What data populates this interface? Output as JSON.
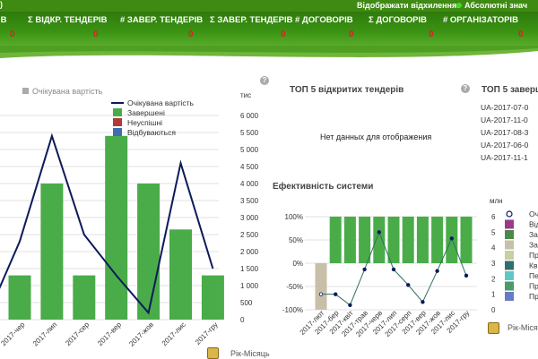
{
  "header": {
    "left_paren": ")",
    "display_label": "Відображати відхилення:",
    "display_option": "Абсолютні знач",
    "kpis": [
      {
        "label": "ІВ",
        "value": "0"
      },
      {
        "label": "Σ ВІДКР. ТЕНДЕРІВ",
        "value": "0"
      },
      {
        "label": "# ЗАВЕР. ТЕНДЕРІВ",
        "value": "0"
      },
      {
        "label": "Σ ЗАВЕР. ТЕНДЕРІВ",
        "value": "0"
      },
      {
        "label": "# ДОГОВОРІВ",
        "value": "0"
      },
      {
        "label": "Σ ДОГОВОРІВ",
        "value": "0"
      },
      {
        "label": "# ОРГАНІЗАТОРІВ",
        "value": "0"
      },
      {
        "label": "",
        "value": "0"
      }
    ],
    "colors": {
      "bar": "#3e8a12",
      "value": "#e02020"
    }
  },
  "left_panel": {
    "legend_label": "Очікувана вартість",
    "help": "?",
    "period_label": "Рік-Місяць",
    "chart_legend": [
      {
        "label": "Очікувана вартість",
        "color": "#0c1a5a"
      },
      {
        "label": "Завершені",
        "color": "#49ac49"
      },
      {
        "label": "Неуспішні",
        "color": "#b03a3a"
      },
      {
        "label": "Відбуваються",
        "color": "#3d6fb0"
      }
    ]
  },
  "top_tenders": {
    "title": "ТОП 5 відкритих тендерів",
    "help": "?",
    "no_data": "Нет данных для отображения"
  },
  "top_completed": {
    "title": "ТОП 5 заверш",
    "help": "?",
    "items": [
      "UA-2017-07-0",
      "UA-2017-11-0",
      "UA-2017-08-3",
      "UA-2017-06-0",
      "UA-2017-11-1"
    ]
  },
  "efficiency": {
    "title": "Ефективність системи",
    "period_label": "Рік-Місяц",
    "unit": "млн",
    "legend": [
      {
        "label": "Оч",
        "color": "#0c1a5a"
      },
      {
        "label": "Від",
        "color": "#9a3a8a"
      },
      {
        "label": "За",
        "color": "#4a8a4a"
      },
      {
        "label": "За",
        "color": "#c8bfa8"
      },
      {
        "label": "Пр",
        "color": "#c8d0a0"
      },
      {
        "label": "Кв",
        "color": "#2f6f6f"
      },
      {
        "label": "Пе",
        "color": "#5ec8c8"
      },
      {
        "label": "Пр",
        "color": "#4a9a6a"
      },
      {
        "label": "Пр",
        "color": "#6a7ac8"
      }
    ]
  },
  "chart_data": [
    {
      "type": "bar",
      "ylabel": "тис",
      "categories": [
        "2017-чер",
        "2017-лип",
        "2017-сер",
        "2017-вер",
        "2017-жов",
        "2017-лис",
        "2017-гру"
      ],
      "series": [
        {
          "name": "Завершені",
          "values": [
            1300,
            4000,
            1300,
            5400,
            4000,
            2650,
            1300
          ]
        },
        {
          "name": "Очікувана вартість",
          "values": [
            2300,
            5400,
            2500,
            1300,
            200,
            4600,
            1500
          ]
        }
      ],
      "yticks": [
        "0",
        "500",
        "1 000",
        "1 500",
        "2 000",
        "2 500",
        "3 000",
        "3 500",
        "4 000",
        "4 500",
        "5 000",
        "5 500",
        "6 000"
      ],
      "ylim": [
        0,
        6000
      ]
    },
    {
      "type": "bar",
      "categories": [
        "2017-лют",
        "2017-бер",
        "2017-квіт",
        "2017-трав",
        "2017-черв",
        "2017-лип",
        "2017-серп",
        "2017-вер",
        "2017-жов",
        "2017-лис",
        "2017-гру"
      ],
      "series": [
        {
          "name": "Завершені",
          "values": [
            0,
            100,
            100,
            100,
            100,
            100,
            100,
            100,
            100,
            100,
            100
          ]
        },
        {
          "name": "За",
          "values": [
            -100,
            0,
            0,
            0,
            0,
            0,
            0,
            0,
            0,
            0,
            0
          ]
        },
        {
          "name": "Оч",
          "values": [
            1,
            1,
            0.3,
            2.6,
            5,
            2.6,
            1.6,
            0.5,
            2.5,
            4.6,
            2.2
          ]
        }
      ],
      "y_left_ticks": [
        "-100%",
        "-50%",
        "0%",
        "50%",
        "100%"
      ],
      "y_right_ticks": [
        "0",
        "1",
        "2",
        "3",
        "4",
        "5",
        "6"
      ],
      "ylim_left": [
        -100,
        100
      ],
      "ylim_right": [
        0,
        6
      ]
    }
  ]
}
